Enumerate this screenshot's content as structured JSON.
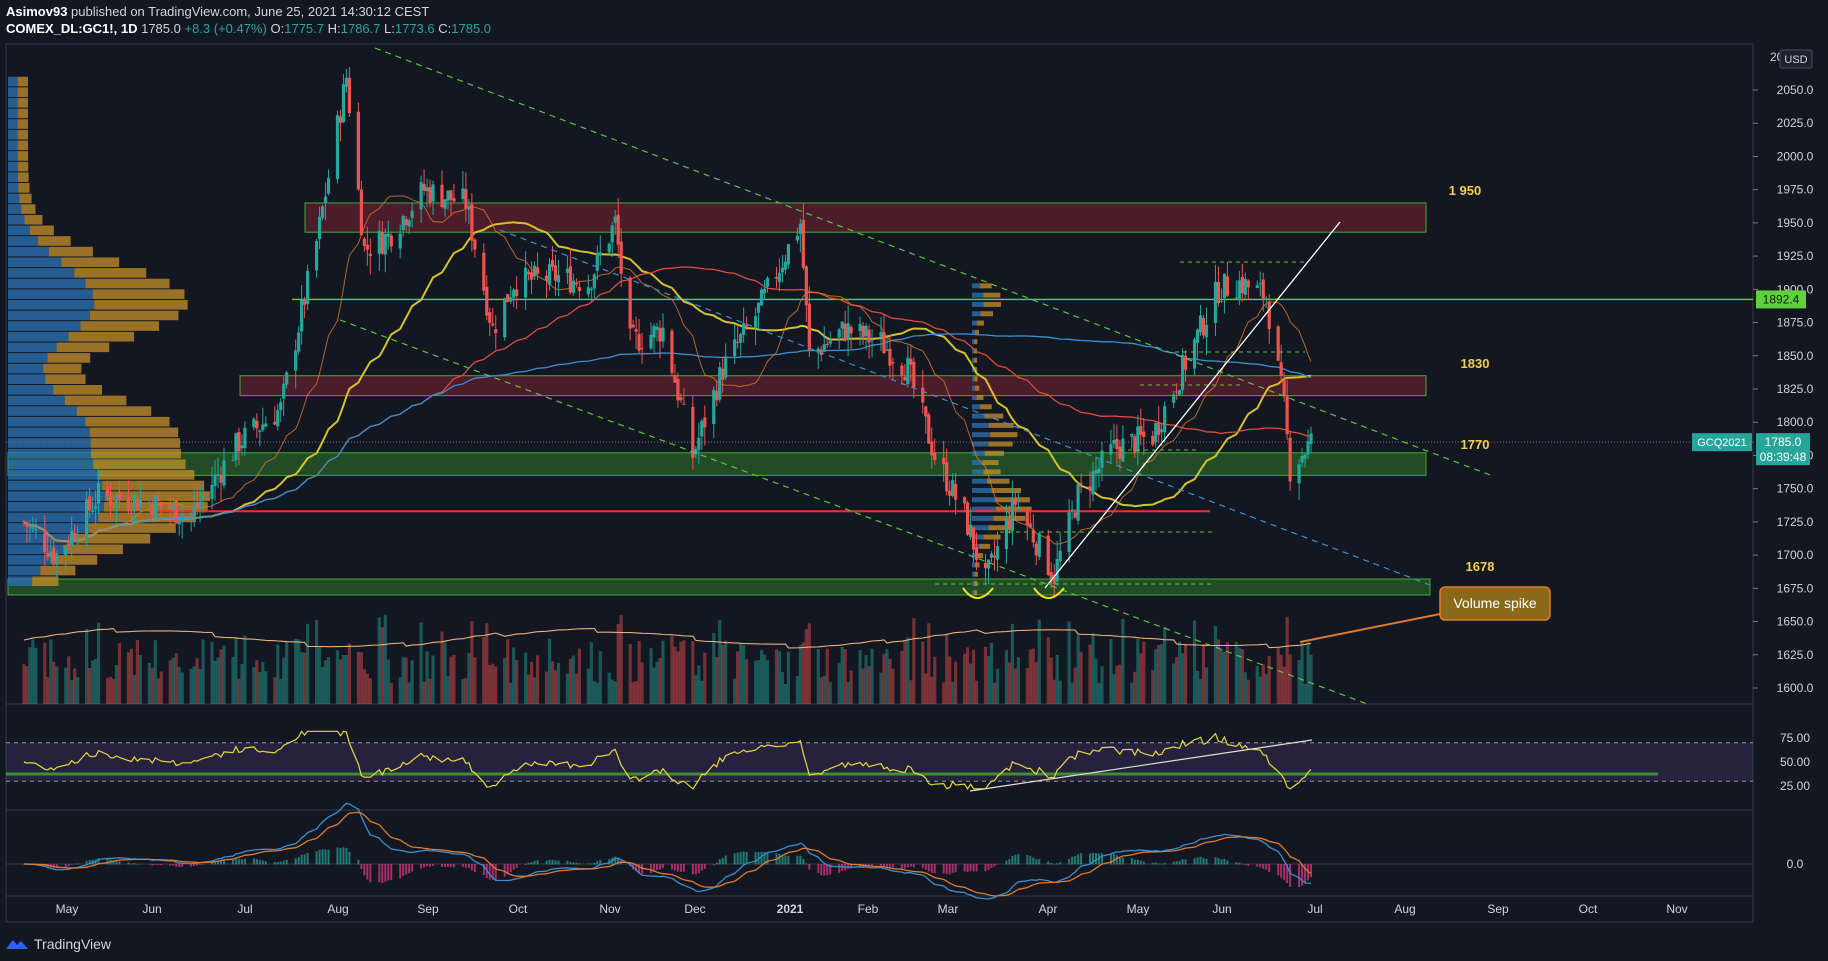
{
  "header": {
    "author": "Asimov93",
    "published_text": "published on TradingView.com, June 25, 2021 14:30:12 CEST",
    "symbol": "COMEX_DL:GC1!, 1D",
    "last": "1785.0",
    "change": "+8.3 (+0.47%)",
    "o_label": "O:",
    "o": "1775.7",
    "h_label": "H:",
    "h": "1786.7",
    "l_label": "L:",
    "l": "1773.6",
    "c_label": "C:",
    "c": "1785.0"
  },
  "footer": {
    "brand": "TradingView"
  },
  "colors": {
    "background": "#131722",
    "up": "#26a69a",
    "down": "#ef5350",
    "zone_green": "#3fae2f",
    "zone_red": "#7a2130",
    "ma_yellow": "#d4c22a",
    "ma_red": "#e04b3a",
    "ma_blue": "#3a8fd0",
    "volume_profile_blue": "#2a6fb0",
    "volume_profile_orange": "#c8922a"
  },
  "price_scale": {
    "currency": "USD",
    "current_contract": "GCQ2021",
    "current_price": "1785.0",
    "countdown": "08:39:48",
    "level_highlight": "1892.4",
    "top_cut": "20",
    "ticks": [
      "2050.0",
      "2025.0",
      "2000.0",
      "1975.0",
      "1950.0",
      "1925.0",
      "1900.0",
      "1875.0",
      "1850.0",
      "1825.0",
      "1800.0",
      "1775.0",
      "1750.0",
      "1725.0",
      "1700.0",
      "1675.0",
      "1650.0",
      "1625.0",
      "1600.0"
    ]
  },
  "rsi_scale": {
    "ticks": [
      "75.00",
      "50.00",
      "25.00"
    ]
  },
  "macd_scale": {
    "ticks": [
      "0.0"
    ]
  },
  "time_axis": {
    "labels": [
      "May",
      "Jun",
      "Jul",
      "Aug",
      "Sep",
      "Oct",
      "Nov",
      "Dec",
      "2021",
      "Feb",
      "Mar",
      "Apr",
      "May",
      "Jun",
      "Jul",
      "Aug",
      "Sep",
      "Oct",
      "Nov"
    ]
  },
  "annotations": {
    "level_1950": "1 950",
    "level_1830": "1830",
    "level_1770": "1770",
    "level_1678": "1678",
    "callout": "Volume spike"
  },
  "chart_data": {
    "type": "candlestick",
    "symbol": "COMEX_DL:GC1!",
    "interval": "1D",
    "x_range": [
      "2020-04",
      "2021-11"
    ],
    "y_range": [
      1590,
      2070
    ],
    "zones": [
      {
        "color": "red",
        "low": 1943,
        "high": 1965,
        "label": "1 950"
      },
      {
        "color": "red",
        "low": 1820,
        "high": 1835,
        "label": "1830"
      },
      {
        "color": "green",
        "low": 1760,
        "high": 1777,
        "label": "1770"
      },
      {
        "color": "green",
        "low": 1670,
        "high": 1682,
        "label": "1678"
      }
    ],
    "horizontal_lines": [
      {
        "value": 1892.4,
        "color": "green"
      },
      {
        "value": 1733,
        "color": "red"
      }
    ],
    "price_series": [
      {
        "date": "2020-04-20",
        "close": 1725
      },
      {
        "date": "2020-05-01",
        "close": 1700
      },
      {
        "date": "2020-05-15",
        "close": 1745
      },
      {
        "date": "2020-06-01",
        "close": 1740
      },
      {
        "date": "2020-06-15",
        "close": 1730
      },
      {
        "date": "2020-07-01",
        "close": 1785
      },
      {
        "date": "2020-07-15",
        "close": 1810
      },
      {
        "date": "2020-07-27",
        "close": 1935
      },
      {
        "date": "2020-08-06",
        "close": 2060
      },
      {
        "date": "2020-08-12",
        "close": 1930
      },
      {
        "date": "2020-08-20",
        "close": 1940
      },
      {
        "date": "2020-09-01",
        "close": 1975
      },
      {
        "date": "2020-09-15",
        "close": 1965
      },
      {
        "date": "2020-09-24",
        "close": 1870
      },
      {
        "date": "2020-10-01",
        "close": 1905
      },
      {
        "date": "2020-10-15",
        "close": 1910
      },
      {
        "date": "2020-10-26",
        "close": 1905
      },
      {
        "date": "2020-11-04",
        "close": 1950
      },
      {
        "date": "2020-11-09",
        "close": 1860
      },
      {
        "date": "2020-11-20",
        "close": 1870
      },
      {
        "date": "2020-11-30",
        "close": 1775
      },
      {
        "date": "2020-12-10",
        "close": 1840
      },
      {
        "date": "2020-12-21",
        "close": 1880
      },
      {
        "date": "2021-01-05",
        "close": 1950
      },
      {
        "date": "2021-01-08",
        "close": 1850
      },
      {
        "date": "2021-01-20",
        "close": 1870
      },
      {
        "date": "2021-02-01",
        "close": 1860
      },
      {
        "date": "2021-02-10",
        "close": 1840
      },
      {
        "date": "2021-02-19",
        "close": 1775
      },
      {
        "date": "2021-03-01",
        "close": 1730
      },
      {
        "date": "2021-03-08",
        "close": 1680
      },
      {
        "date": "2021-03-18",
        "close": 1740
      },
      {
        "date": "2021-03-31",
        "close": 1685
      },
      {
        "date": "2021-04-08",
        "close": 1745
      },
      {
        "date": "2021-04-20",
        "close": 1780
      },
      {
        "date": "2021-05-03",
        "close": 1790
      },
      {
        "date": "2021-05-14",
        "close": 1845
      },
      {
        "date": "2021-05-25",
        "close": 1900
      },
      {
        "date": "2021-06-01",
        "close": 1905
      },
      {
        "date": "2021-06-10",
        "close": 1895
      },
      {
        "date": "2021-06-16",
        "close": 1810
      },
      {
        "date": "2021-06-18",
        "close": 1765
      },
      {
        "date": "2021-06-25",
        "close": 1785
      }
    ],
    "rsi": {
      "upper": 70,
      "lower": 30,
      "last": 38
    },
    "macd": {
      "zero": 0
    }
  }
}
